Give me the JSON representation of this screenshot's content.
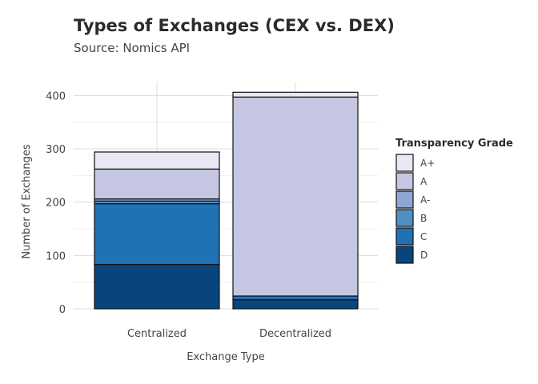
{
  "chart_data": {
    "type": "bar",
    "stacked": true,
    "title": "Types of Exchanges (CEX vs. DEX)",
    "subtitle": "Source: Nomics API",
    "xlabel": "Exchange Type",
    "ylabel": "Number of Exchanges",
    "categories": [
      "Centralized",
      "Decentralized"
    ],
    "ylim": [
      0,
      420
    ],
    "yticks": [
      0,
      100,
      200,
      300,
      400
    ],
    "grid": true,
    "legend": {
      "title": "Transparency Grade",
      "position": "right"
    },
    "series": [
      {
        "name": "D",
        "color": "#08457e",
        "values": [
          83,
          17
        ]
      },
      {
        "name": "C",
        "color": "#2171b5",
        "values": [
          114,
          7
        ]
      },
      {
        "name": "B",
        "color": "#4f8fc4",
        "values": [
          5,
          0
        ]
      },
      {
        "name": "A-",
        "color": "#8fa6d2",
        "values": [
          4,
          0
        ]
      },
      {
        "name": "A",
        "color": "#c5c6e2",
        "values": [
          56,
          373
        ]
      },
      {
        "name": "A+",
        "color": "#e9e7f3",
        "values": [
          32,
          9
        ]
      }
    ],
    "legend_order": [
      "A+",
      "A",
      "A-",
      "B",
      "C",
      "D"
    ]
  }
}
